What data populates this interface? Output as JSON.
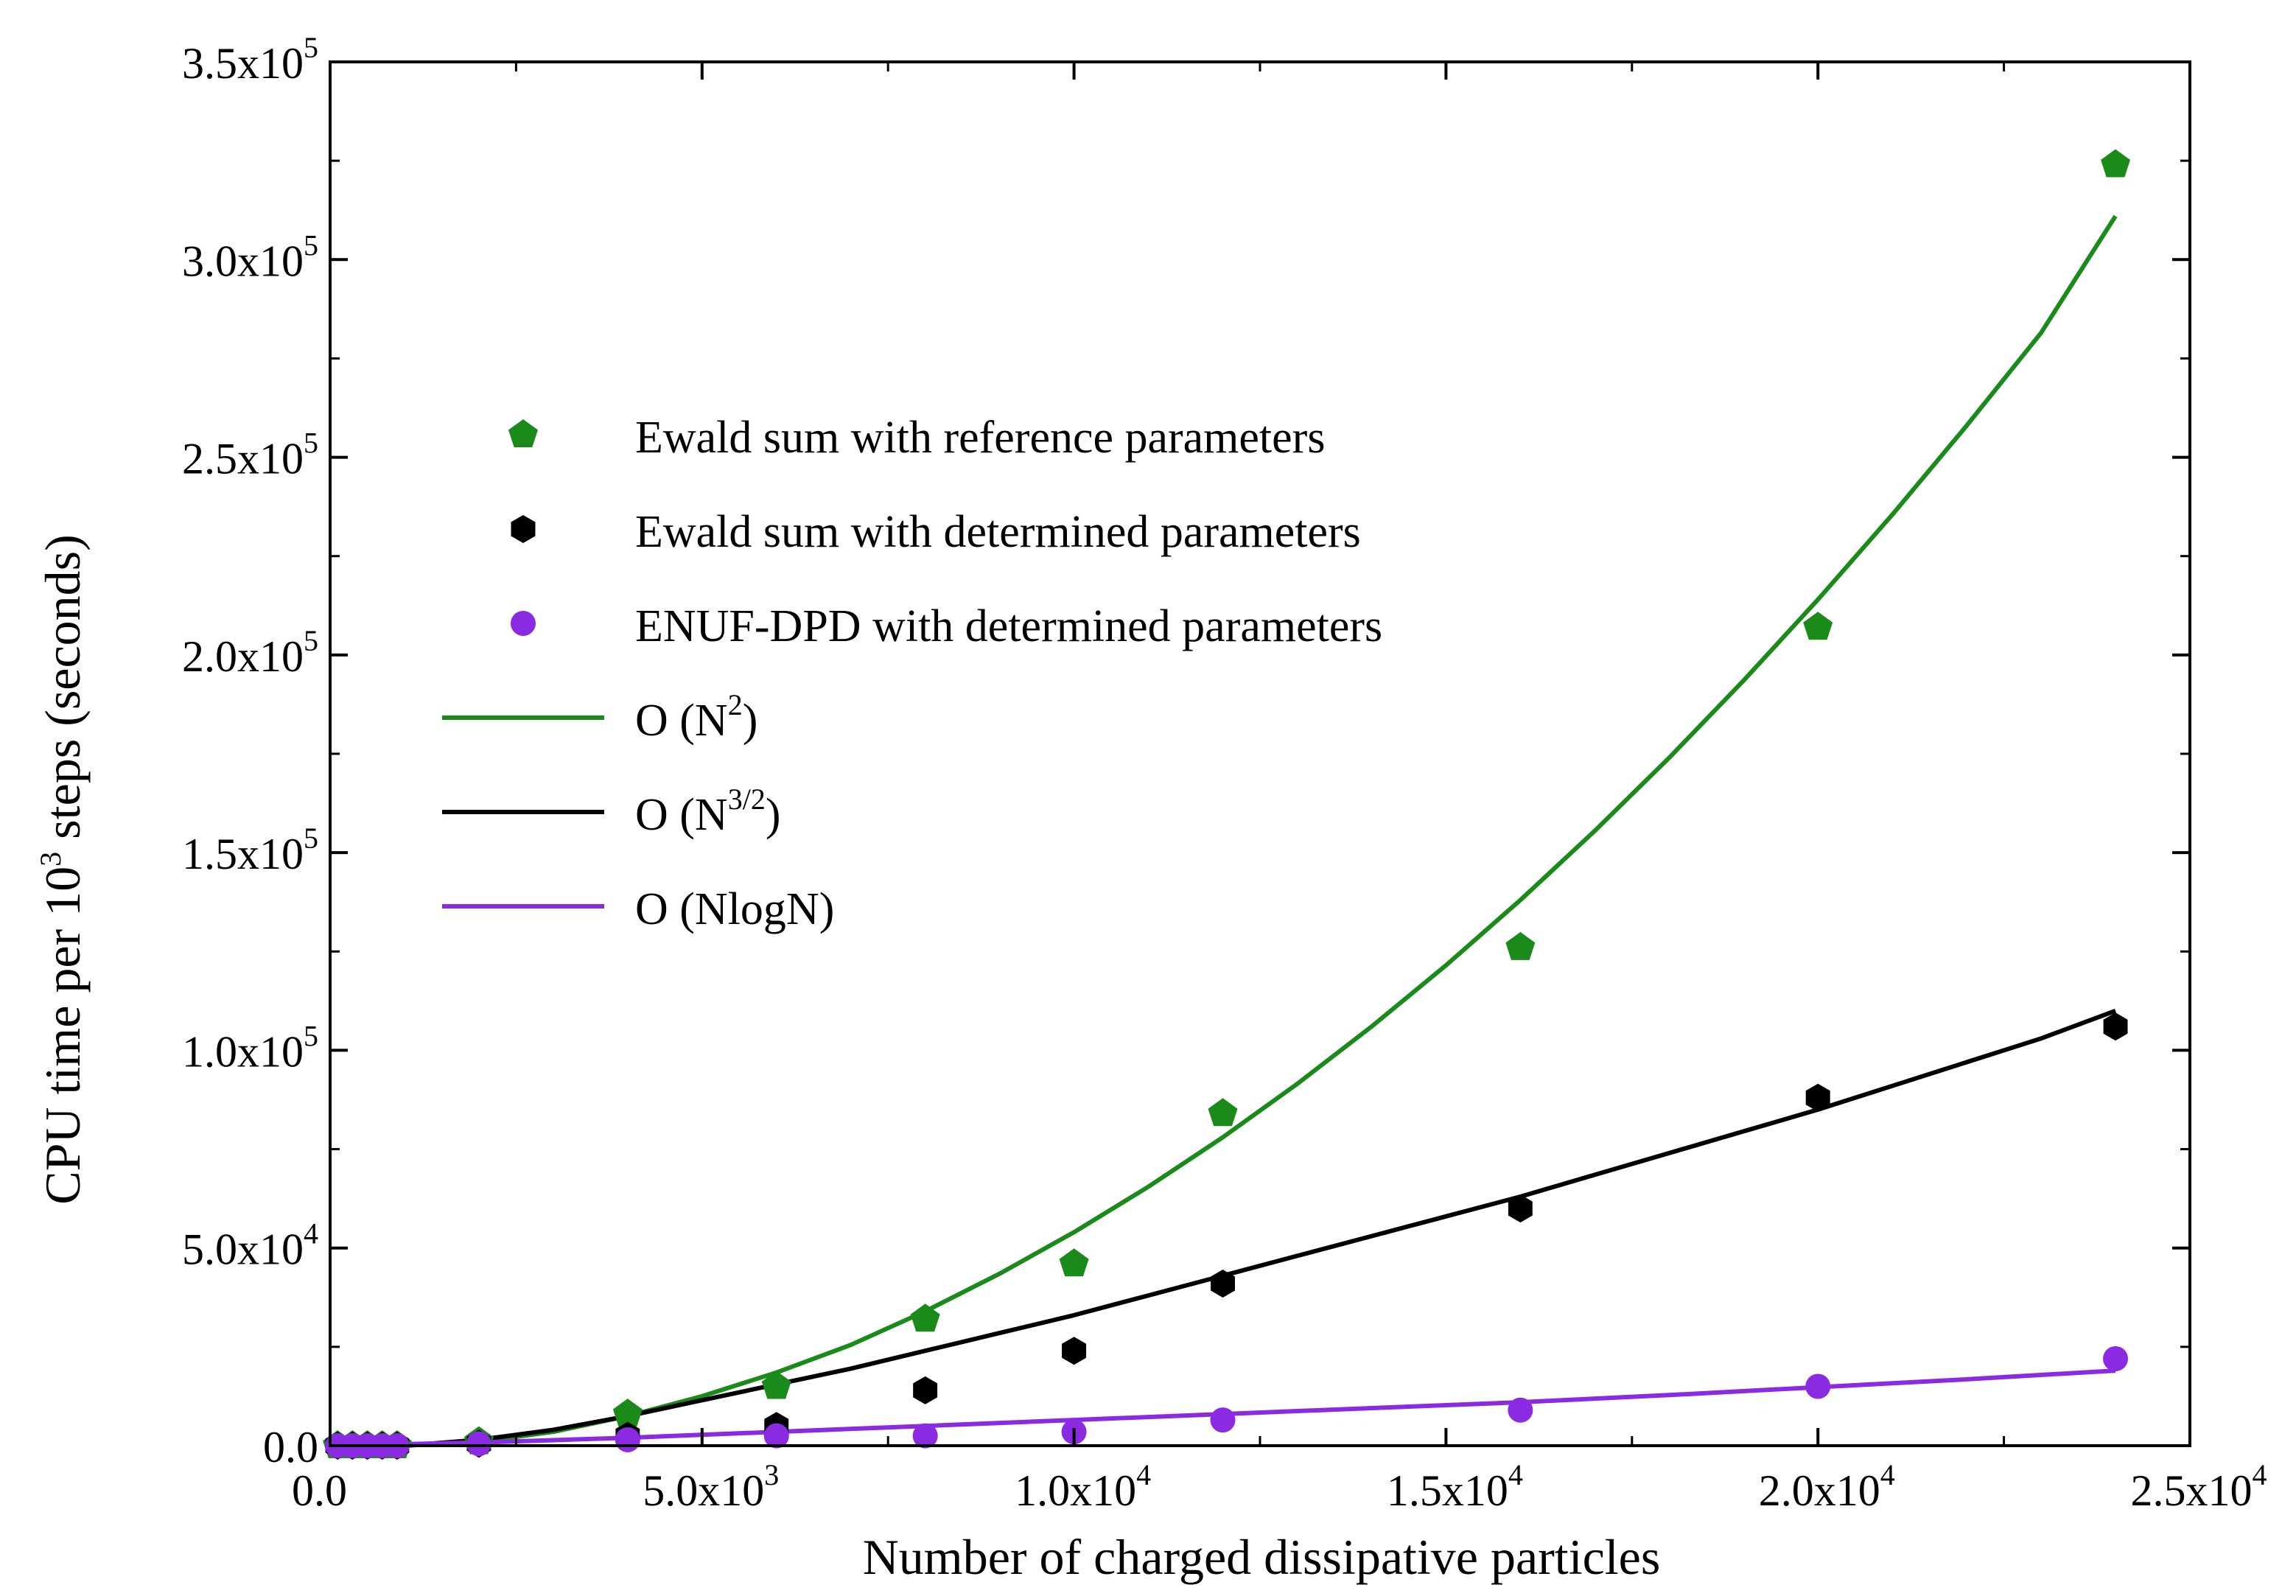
{
  "chart_data": {
    "type": "scatter",
    "xlabel": "Number of charged dissipative particles",
    "ylabel_parts": [
      "CPU time per 10",
      "3",
      " steps (seconds)"
    ],
    "xlim": [
      0,
      25000
    ],
    "ylim": [
      0,
      350000
    ],
    "grid": false,
    "legend_position": "upper-left",
    "x_ticks": [
      {
        "value": 0,
        "mantissa": "0.0",
        "exponent": ""
      },
      {
        "value": 5000,
        "mantissa": "5.0x10",
        "exponent": "3"
      },
      {
        "value": 10000,
        "mantissa": "1.0x10",
        "exponent": "4"
      },
      {
        "value": 15000,
        "mantissa": "1.5x10",
        "exponent": "4"
      },
      {
        "value": 20000,
        "mantissa": "2.0x10",
        "exponent": "4"
      },
      {
        "value": 25000,
        "mantissa": "2.5x10",
        "exponent": "4"
      }
    ],
    "y_ticks": [
      {
        "value": 0,
        "mantissa": "0.0",
        "exponent": ""
      },
      {
        "value": 50000,
        "mantissa": "5.0x10",
        "exponent": "4"
      },
      {
        "value": 100000,
        "mantissa": "1.0x10",
        "exponent": "5"
      },
      {
        "value": 150000,
        "mantissa": "1.5x10",
        "exponent": "5"
      },
      {
        "value": 200000,
        "mantissa": "2.0x10",
        "exponent": "5"
      },
      {
        "value": 250000,
        "mantissa": "2.5x10",
        "exponent": "5"
      },
      {
        "value": 300000,
        "mantissa": "3.0x10",
        "exponent": "5"
      },
      {
        "value": 350000,
        "mantissa": "3.5x10",
        "exponent": "5"
      }
    ],
    "series": [
      {
        "name": "Ewald sum with reference parameters",
        "kind": "points",
        "marker": "pentagon",
        "color": "#1a8a1a",
        "x": [
          100,
          300,
          500,
          700,
          900,
          2000,
          4000,
          6000,
          8000,
          10000,
          12000,
          16000,
          20000,
          24000
        ],
        "y": [
          0,
          0,
          0,
          0,
          0,
          1000,
          8000,
          15000,
          32000,
          46000,
          84000,
          126000,
          207000,
          324000
        ]
      },
      {
        "name": "Ewald sum with determined parameters",
        "kind": "points",
        "marker": "hexagon",
        "color": "#000000",
        "x": [
          100,
          300,
          500,
          700,
          900,
          2000,
          4000,
          6000,
          8000,
          10000,
          12000,
          16000,
          20000,
          24000
        ],
        "y": [
          0,
          0,
          0,
          0,
          0,
          500,
          2500,
          5000,
          14000,
          24000,
          41000,
          60000,
          88000,
          106000
        ]
      },
      {
        "name": "ENUF-DPD with determined parameters",
        "kind": "points",
        "marker": "circle",
        "color": "#8a2be2",
        "x": [
          100,
          300,
          500,
          700,
          900,
          2000,
          4000,
          6000,
          8000,
          10000,
          12000,
          16000,
          20000,
          24000
        ],
        "y": [
          0,
          0,
          0,
          0,
          0,
          500,
          1500,
          2500,
          2500,
          3500,
          6500,
          9000,
          15000,
          22000
        ]
      },
      {
        "name": "O (N²)",
        "legend_main": "O (N",
        "legend_sup": "2",
        "legend_tail": ")",
        "kind": "line",
        "color": "#1a8a1a",
        "x": [
          0,
          1000,
          2000,
          3000,
          4000,
          5000,
          6000,
          7000,
          8000,
          9000,
          10000,
          11000,
          12000,
          13000,
          14000,
          15000,
          16000,
          17000,
          18000,
          19000,
          20000,
          21000,
          22000,
          23000,
          24000
        ],
        "y": [
          0,
          0,
          1000,
          3500,
          7500,
          12500,
          18500,
          25500,
          34000,
          43500,
          54000,
          65500,
          78000,
          91500,
          106000,
          121500,
          138000,
          155500,
          174000,
          193500,
          214000,
          235500,
          258000,
          281500,
          311000
        ]
      },
      {
        "name": "O (N³ᐟ²)",
        "legend_main": "O (N",
        "legend_sup": "3/2",
        "legend_tail": ")",
        "kind": "line",
        "color": "#000000",
        "x": [
          0,
          1000,
          2000,
          3000,
          4000,
          5000,
          6000,
          7000,
          8000,
          9000,
          10000,
          11000,
          12000,
          13000,
          14000,
          15000,
          16000,
          17000,
          18000,
          19000,
          20000,
          21000,
          22000,
          23000,
          24000
        ],
        "y": [
          0,
          0,
          1500,
          4000,
          7500,
          11500,
          15500,
          19500,
          24000,
          28500,
          33000,
          38000,
          43000,
          48000,
          53000,
          58000,
          63000,
          68500,
          74000,
          79500,
          85000,
          91000,
          97000,
          103000,
          110000
        ]
      },
      {
        "name": "O (NlogN)",
        "legend_main": "O (NlogN)",
        "legend_sup": "",
        "legend_tail": "",
        "kind": "line",
        "color": "#8a2be2",
        "x": [
          0,
          2000,
          4000,
          6000,
          8000,
          10000,
          12000,
          14000,
          16000,
          18000,
          20000,
          22000,
          24000
        ],
        "y": [
          0,
          800,
          2000,
          3500,
          5000,
          6500,
          8000,
          9500,
          11000,
          12800,
          14800,
          16800,
          19000
        ]
      }
    ]
  }
}
